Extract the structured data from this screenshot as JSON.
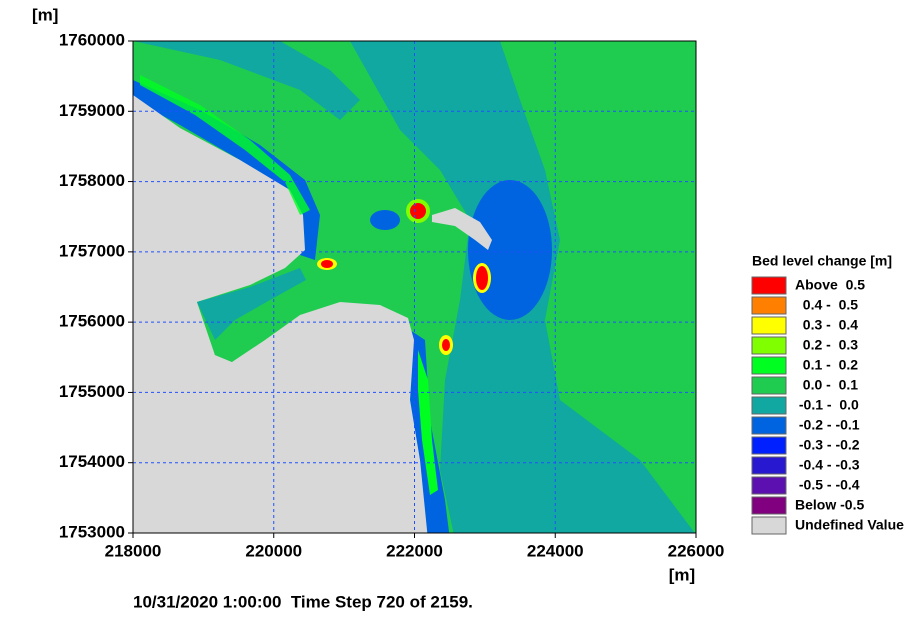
{
  "axes": {
    "x_unit": "[m]",
    "y_unit": "[m]",
    "xlim": [
      218000,
      226000
    ],
    "ylim": [
      1753000,
      1760000
    ],
    "xticks": [
      218000,
      220000,
      222000,
      224000,
      226000
    ],
    "yticks": [
      1753000,
      1754000,
      1755000,
      1756000,
      1757000,
      1758000,
      1759000,
      1760000
    ],
    "grid": true,
    "grid_color": "#2050ff"
  },
  "legend": {
    "title": "Bed level change [m]",
    "items": [
      {
        "label": "Above  0.5",
        "color": "#ff0000"
      },
      {
        "label": "  0.4 -  0.5",
        "color": "#ff8000"
      },
      {
        "label": "  0.3 -  0.4",
        "color": "#ffff00"
      },
      {
        "label": "  0.2 -  0.3",
        "color": "#80ff00"
      },
      {
        "label": "  0.1 -  0.2",
        "color": "#00ff20"
      },
      {
        "label": "  0.0 -  0.1",
        "color": "#20cc50"
      },
      {
        "label": " -0.1 -  0.0",
        "color": "#10a8a0"
      },
      {
        "label": " -0.2 - -0.1",
        "color": "#0064e0"
      },
      {
        "label": " -0.3 - -0.2",
        "color": "#0020ff"
      },
      {
        "label": " -0.4 - -0.3",
        "color": "#2818d0"
      },
      {
        "label": " -0.5 - -0.4",
        "color": "#5c10b0"
      },
      {
        "label": "Below -0.5",
        "color": "#800080"
      },
      {
        "label": "Undefined Value",
        "color": "#d8d8d8"
      }
    ]
  },
  "footer": "10/31/2020 1:00:00  Time Step 720 of 2159."
}
